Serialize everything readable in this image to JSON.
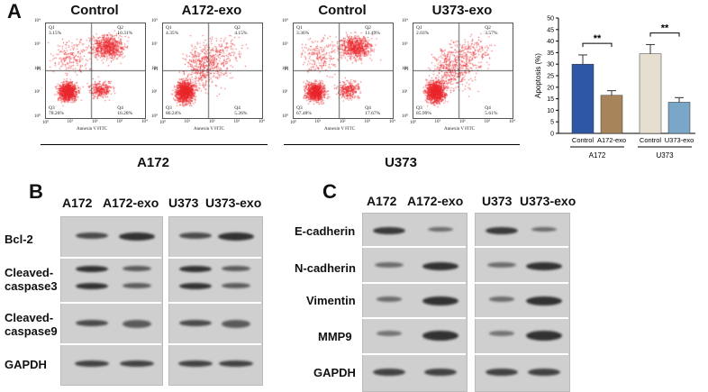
{
  "panelA": {
    "letter": "A",
    "plots": [
      {
        "title": "Control",
        "q1": "Q1",
        "q1v": "3.15%",
        "q2": "Q2",
        "q2v": "10.31%",
        "q3": "Q3",
        "q3v": "78.26%",
        "q4": "Q4",
        "q4v": "16.28%"
      },
      {
        "title": "A172-exo",
        "q1": "Q1",
        "q1v": "4.35%",
        "q2": "Q2",
        "q2v": "4.15%",
        "q3": "Q3",
        "q3v": "86.24%",
        "q4": "Q4",
        "q4v": "5.26%"
      },
      {
        "title": "Control",
        "q1": "Q1",
        "q1v": "3.36%",
        "q2": "Q2",
        "q2v": "11.49%",
        "q3": "Q3",
        "q3v": "67.48%",
        "q4": "Q4",
        "q4v": "17.67%"
      },
      {
        "title": "U373-exo",
        "q1": "Q1",
        "q1v": "2.03%",
        "q2": "Q2",
        "q2v": "3.57%",
        "q3": "Q3",
        "q3v": "85.99%",
        "q4": "Q4",
        "q4v": "5.61%"
      }
    ],
    "xaxis_label": "Annexin V FITC",
    "yaxis_label": "PI",
    "group_labels": [
      "A172",
      "U373"
    ],
    "dot_color": "#e8262b"
  },
  "chart_data": {
    "type": "bar",
    "categories": [
      "Control",
      "A172-exo",
      "Control",
      "U373-exo"
    ],
    "groups": [
      "A172",
      "U373"
    ],
    "values": [
      30,
      16.5,
      34.5,
      13.5
    ],
    "errors": [
      4,
      2,
      4,
      2
    ],
    "colors": [
      "#2e57a6",
      "#a8845a",
      "#e6dfd0",
      "#7aa6c8"
    ],
    "ylabel": "Apoptosis (%)",
    "ylim": [
      0,
      50
    ],
    "yticks": [
      "0",
      "5",
      "10",
      "15",
      "20",
      "25",
      "30",
      "35",
      "40",
      "45",
      "50"
    ],
    "significance": [
      "**",
      "**"
    ]
  },
  "panelB": {
    "letter": "B",
    "columns": [
      "A172",
      "A172-exo",
      "U373",
      "U373-exo"
    ],
    "rows": [
      "Bcl-2",
      "Cleaved-\ncaspase3",
      "Cleaved-\ncaspase9",
      "GAPDH"
    ]
  },
  "panelC": {
    "letter": "C",
    "columns": [
      "A172",
      "A172-exo",
      "U373",
      "U373-exo"
    ],
    "rows": [
      "E-cadherin",
      "N-cadherin",
      "Vimentin",
      "MMP9",
      "GAPDH"
    ]
  }
}
